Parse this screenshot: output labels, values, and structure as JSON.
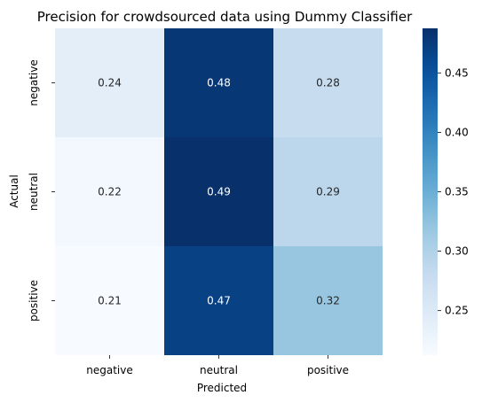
{
  "chart_data": {
    "type": "heatmap",
    "title": "Precision for crowdsourced data using Dummy Classifier",
    "xlabel": "Predicted",
    "ylabel": "Actual",
    "x_categories": [
      "negative",
      "neutral",
      "positive"
    ],
    "y_categories": [
      "negative",
      "neutral",
      "positive"
    ],
    "values": [
      [
        0.24,
        0.48,
        0.28
      ],
      [
        0.22,
        0.49,
        0.29
      ],
      [
        0.21,
        0.47,
        0.32
      ]
    ],
    "colormap": "Blues",
    "colorbar": {
      "range": [
        0.2125,
        0.4875
      ],
      "ticks": [
        0.25,
        0.3,
        0.35,
        0.4,
        0.45
      ],
      "tick_labels": [
        "0.25",
        "0.30",
        "0.35",
        "0.40",
        "0.45"
      ]
    },
    "text_color_light": "#ffffff",
    "text_color_dark": "#262626"
  }
}
